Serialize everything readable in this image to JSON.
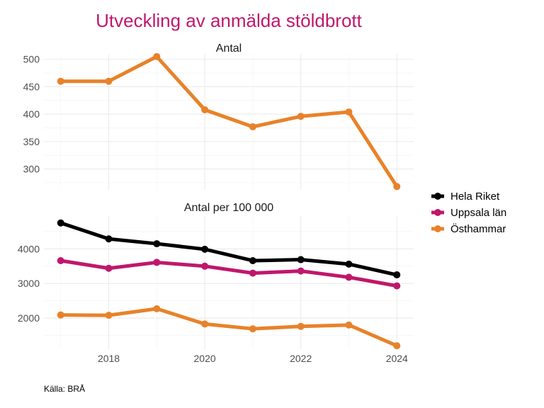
{
  "chart_data": {
    "type": "line",
    "title": "Utveckling av anmälda stöldbrott",
    "caption": "Källa: BRÅ",
    "title_color": "#c0176c",
    "x": [
      2017,
      2018,
      2019,
      2020,
      2021,
      2022,
      2023,
      2024
    ],
    "x_ticks": [
      "2018",
      "2020",
      "2022",
      "2024"
    ],
    "legend": {
      "placement": "right",
      "entries": [
        {
          "name": "Hela Riket",
          "color": "#000000"
        },
        {
          "name": "Uppsala län",
          "color": "#c0176c"
        },
        {
          "name": "Östhammar",
          "color": "#e8822a"
        }
      ]
    },
    "panels": [
      {
        "title": "Antal",
        "ylim": [
          262,
          510
        ],
        "y_ticks": [
          "300",
          "350",
          "400",
          "450",
          "500"
        ],
        "y_tick_values": [
          300,
          350,
          400,
          450,
          500
        ],
        "series": [
          {
            "name": "Östhammar",
            "color": "#e8822a",
            "values": [
              460,
              460,
              505,
              408,
              377,
              396,
              404,
              268
            ]
          }
        ]
      },
      {
        "title": "Antal per 100 000",
        "ylim": [
          1100,
          4950
        ],
        "y_ticks": [
          "2000",
          "3000",
          "4000"
        ],
        "y_tick_values": [
          2000,
          3000,
          4000
        ],
        "series": [
          {
            "name": "Hela Riket",
            "color": "#000000",
            "values": [
              4750,
              4290,
              4150,
              3990,
              3660,
              3690,
              3560,
              3250
            ]
          },
          {
            "name": "Uppsala län",
            "color": "#c0176c",
            "values": [
              3660,
              3440,
              3610,
              3500,
              3300,
              3360,
              3180,
              2930
            ]
          },
          {
            "name": "Östhammar",
            "color": "#e8822a",
            "values": [
              2090,
              2080,
              2270,
              1830,
              1690,
              1760,
              1800,
              1200
            ]
          }
        ]
      }
    ]
  }
}
